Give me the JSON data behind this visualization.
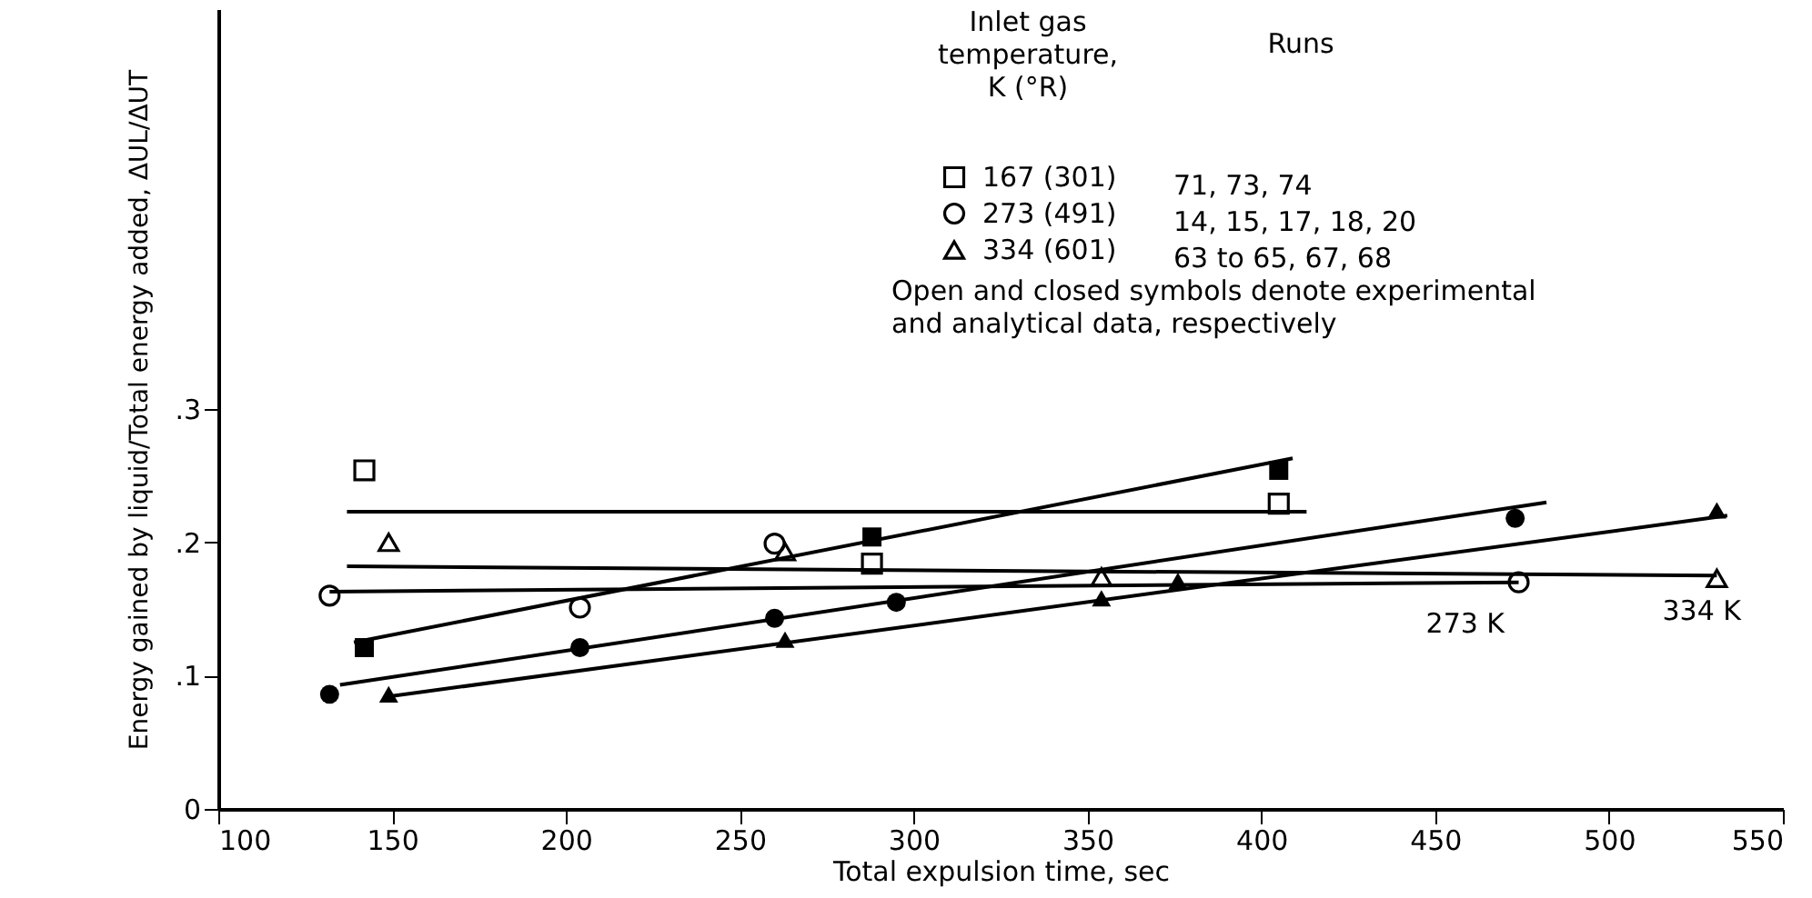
{
  "chart_data": {
    "type": "scatter",
    "xlabel": "Total expulsion time, sec",
    "ylabel": "Energy gained by liquid/Total energy added, ΔUL/ΔUT",
    "legend_title": "Inlet gas\ntemperature,\nK (°R)",
    "legend": "top right",
    "grid": false,
    "xlim": [
      100,
      550
    ],
    "xticks": [
      100,
      150,
      200,
      250,
      300,
      350,
      400,
      450,
      500,
      550
    ],
    "ylim": [
      0,
      0.6
    ],
    "yticks": [
      {
        "value": 0,
        "label": "0"
      },
      {
        "value": 0.1,
        "label": ".1"
      },
      {
        "value": 0.2,
        "label": ".2"
      },
      {
        "value": 0.3,
        "label": ".3"
      }
    ],
    "series": [
      {
        "name": "167 (301)",
        "marker": "square",
        "color": "#000000",
        "x": [
          142,
          288,
          405
        ],
        "values": [
          0.254,
          0.184,
          0.229
        ]
      },
      {
        "name": "273 (491)",
        "marker": "circle",
        "color": "#000000",
        "x": [
          132,
          204,
          260,
          474
        ],
        "values": [
          0.16,
          0.151,
          0.199,
          0.17
        ]
      },
      {
        "name": "334 (601)",
        "marker": "triangle",
        "color": "#000000",
        "x": [
          149,
          263,
          354,
          531
        ],
        "values": [
          0.2,
          0.193,
          0.174,
          0.173
        ]
      },
      {
        "marker": "square",
        "color": "#000000",
        "x": [
          142,
          288,
          405
        ],
        "values": [
          0.121,
          0.204,
          0.254
        ]
      },
      {
        "marker": "circle",
        "color": "#000000",
        "x": [
          132,
          204,
          260,
          295,
          473
        ],
        "values": [
          0.086,
          0.121,
          0.143,
          0.155,
          0.218
        ]
      },
      {
        "marker": "triangle",
        "color": "#000000",
        "x": [
          149,
          263,
          354,
          376,
          531
        ],
        "values": [
          0.086,
          0.127,
          0.158,
          0.171,
          0.224
        ]
      },
      {
        "type": "line",
        "marker": "none",
        "line_style": "solid",
        "color": "#000000",
        "x": [
          137,
          413
        ],
        "values": [
          0.223,
          0.223
        ]
      },
      {
        "type": "line",
        "marker": "none",
        "line_style": "solid",
        "color": "#000000",
        "x": [
          132,
          474
        ],
        "values": [
          0.163,
          0.17
        ]
      },
      {
        "type": "line",
        "marker": "none",
        "line_style": "solid",
        "color": "#000000",
        "x": [
          137,
          531
        ],
        "values": [
          0.182,
          0.175
        ]
      },
      {
        "type": "line",
        "marker": "none",
        "line_style": "solid",
        "color": "#000000",
        "x": [
          139,
          409
        ],
        "values": [
          0.125,
          0.263
        ]
      },
      {
        "type": "line",
        "marker": "none",
        "line_style": "solid",
        "color": "#000000",
        "x": [
          135,
          482
        ],
        "values": [
          0.093,
          0.23
        ]
      },
      {
        "type": "line",
        "marker": "none",
        "line_style": "solid",
        "color": "#000000",
        "x": [
          148,
          534
        ],
        "values": [
          0.084,
          0.22
        ]
      }
    ],
    "annotations": [
      "Runs",
      "71, 73, 74",
      "14, 15, 17, 18, 20",
      "63 to 65, 67, 68",
      "Open and closed symbols denote experimental\nand analytical data, respectively",
      {
        "text": "273 K",
        "x": 440,
        "y": 0.168
      },
      {
        "text": "334 K",
        "x": 508,
        "y": 0.177
      }
    ]
  }
}
